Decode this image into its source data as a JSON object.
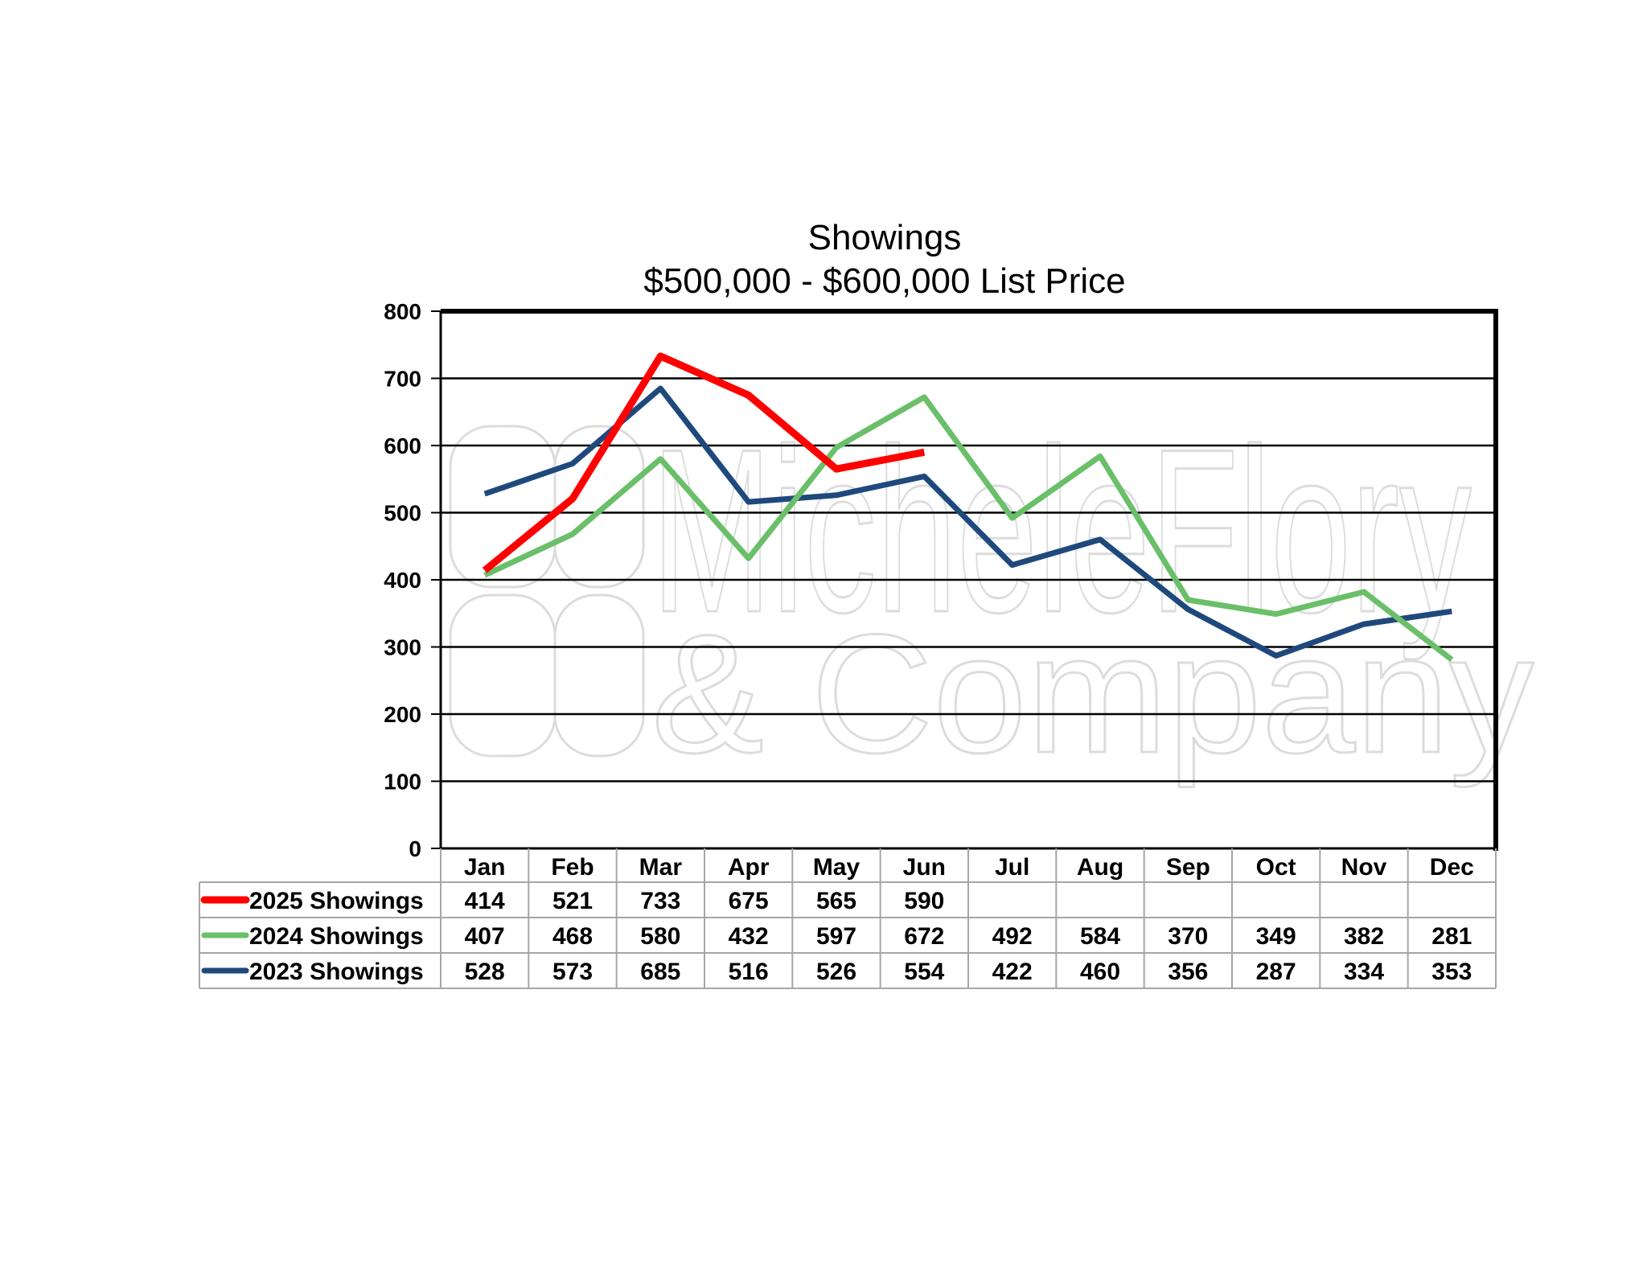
{
  "chart_data": {
    "type": "line",
    "title": "Showings",
    "subtitle": "$500,000 - $600,000 List Price",
    "categories": [
      "Jan",
      "Feb",
      "Mar",
      "Apr",
      "May",
      "Jun",
      "Jul",
      "Aug",
      "Sep",
      "Oct",
      "Nov",
      "Dec"
    ],
    "ylim": [
      0,
      800
    ],
    "yticks": [
      0,
      100,
      200,
      300,
      400,
      500,
      600,
      700,
      800
    ],
    "grid": true,
    "legend": "data-table",
    "watermark": [
      "MicheleFlory",
      "& Company"
    ],
    "series": [
      {
        "name": "2025 Showings",
        "color": "#ff0000",
        "values": [
          414,
          521,
          733,
          675,
          565,
          590,
          null,
          null,
          null,
          null,
          null,
          null
        ]
      },
      {
        "name": "2024 Showings",
        "color": "#6abf69",
        "values": [
          407,
          468,
          580,
          432,
          597,
          672,
          492,
          584,
          370,
          349,
          382,
          281
        ]
      },
      {
        "name": "2023 Showings",
        "color": "#1f497d",
        "values": [
          528,
          573,
          685,
          516,
          526,
          554,
          422,
          460,
          356,
          287,
          334,
          353
        ]
      }
    ]
  }
}
